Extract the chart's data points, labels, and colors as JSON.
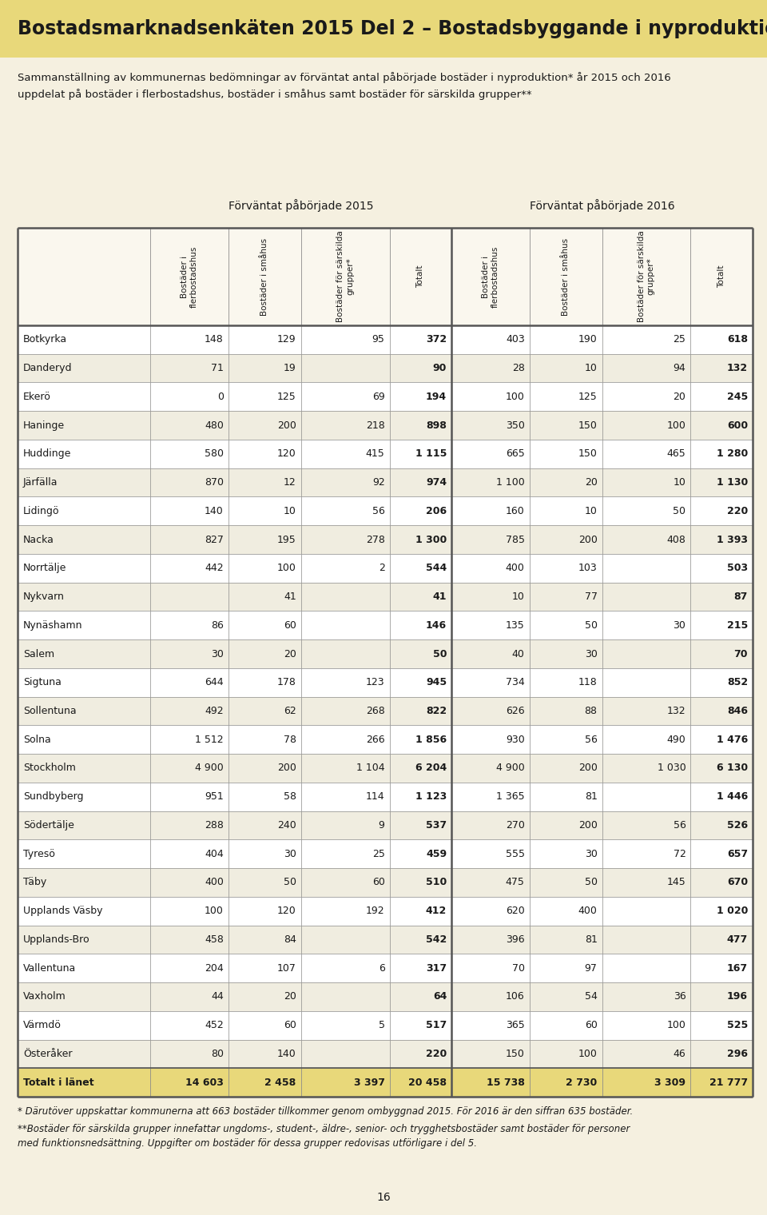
{
  "title_part1": "Bostadsmarknadsenkäten 2015 ",
  "title_bold": "Del 2",
  "title_part2": " – Bostadsbyggande i nyproduktion",
  "subtitle": "Sammanställning av kommunernas bedömningar av förväntat antal påbörjade bostäder i nyproduktion* år 2015 och 2016\nuppdelat på bostäder i flerbostadshus, bostäder i småhus samt bostäder för särskilda grupper**",
  "header_2015": "Förväntat påbörjade 2015",
  "header_2016": "Förväntat påbörjade 2016",
  "col_headers": [
    "Bostäder i\nflerbostadshus",
    "Bostäder i småhus",
    "Bostäder för särskilda\ngrupper*",
    "Totalt",
    "Bostäder i\nflerbostadshus",
    "Bostäder i småhus",
    "Bostäder för särskilda\ngrupper*",
    "Totalt"
  ],
  "rows": [
    [
      "Botkyrka",
      "148",
      "129",
      "95",
      "372",
      "403",
      "190",
      "25",
      "618"
    ],
    [
      "Danderyd",
      "71",
      "19",
      "",
      "90",
      "28",
      "10",
      "94",
      "132"
    ],
    [
      "Ekerö",
      "0",
      "125",
      "69",
      "194",
      "100",
      "125",
      "20",
      "245"
    ],
    [
      "Haninge",
      "480",
      "200",
      "218",
      "898",
      "350",
      "150",
      "100",
      "600"
    ],
    [
      "Huddinge",
      "580",
      "120",
      "415",
      "1 115",
      "665",
      "150",
      "465",
      "1 280"
    ],
    [
      "Järfälla",
      "870",
      "12",
      "92",
      "974",
      "1 100",
      "20",
      "10",
      "1 130"
    ],
    [
      "Lidingö",
      "140",
      "10",
      "56",
      "206",
      "160",
      "10",
      "50",
      "220"
    ],
    [
      "Nacka",
      "827",
      "195",
      "278",
      "1 300",
      "785",
      "200",
      "408",
      "1 393"
    ],
    [
      "Norrtälje",
      "442",
      "100",
      "2",
      "544",
      "400",
      "103",
      "",
      "503"
    ],
    [
      "Nykvarn",
      "",
      "41",
      "",
      "41",
      "10",
      "77",
      "",
      "87"
    ],
    [
      "Nynäshamn",
      "86",
      "60",
      "",
      "146",
      "135",
      "50",
      "30",
      "215"
    ],
    [
      "Salem",
      "30",
      "20",
      "",
      "50",
      "40",
      "30",
      "",
      "70"
    ],
    [
      "Sigtuna",
      "644",
      "178",
      "123",
      "945",
      "734",
      "118",
      "",
      "852"
    ],
    [
      "Sollentuna",
      "492",
      "62",
      "268",
      "822",
      "626",
      "88",
      "132",
      "846"
    ],
    [
      "Solna",
      "1 512",
      "78",
      "266",
      "1 856",
      "930",
      "56",
      "490",
      "1 476"
    ],
    [
      "Stockholm",
      "4 900",
      "200",
      "1 104",
      "6 204",
      "4 900",
      "200",
      "1 030",
      "6 130"
    ],
    [
      "Sundbyberg",
      "951",
      "58",
      "114",
      "1 123",
      "1 365",
      "81",
      "",
      "1 446"
    ],
    [
      "Södertälje",
      "288",
      "240",
      "9",
      "537",
      "270",
      "200",
      "56",
      "526"
    ],
    [
      "Tyresö",
      "404",
      "30",
      "25",
      "459",
      "555",
      "30",
      "72",
      "657"
    ],
    [
      "Täby",
      "400",
      "50",
      "60",
      "510",
      "475",
      "50",
      "145",
      "670"
    ],
    [
      "Upplands Väsby",
      "100",
      "120",
      "192",
      "412",
      "620",
      "400",
      "",
      "1 020"
    ],
    [
      "Upplands-Bro",
      "458",
      "84",
      "",
      "542",
      "396",
      "81",
      "",
      "477"
    ],
    [
      "Vallentuna",
      "204",
      "107",
      "6",
      "317",
      "70",
      "97",
      "",
      "167"
    ],
    [
      "Vaxholm",
      "44",
      "20",
      "",
      "64",
      "106",
      "54",
      "36",
      "196"
    ],
    [
      "Värmdö",
      "452",
      "60",
      "5",
      "517",
      "365",
      "60",
      "100",
      "525"
    ],
    [
      "Österåker",
      "80",
      "140",
      "",
      "220",
      "150",
      "100",
      "46",
      "296"
    ]
  ],
  "total_row": [
    "Totalt i länet",
    "14 603",
    "2 458",
    "3 397",
    "20 458",
    "15 738",
    "2 730",
    "3 309",
    "21 777"
  ],
  "footnote1": "* Därutöver uppskattar kommunerna att 663 bostäder tillkommer genom ombyggnad 2015. För 2016 är den siffran 635 bostäder.",
  "footnote2": "**Bostäder för särskilda grupper innefattar ungdoms-, student-, äldre-, senior- och trygghetsbostäder samt bostäder för personer\nmed funktionsnedsättning. Uppgifter om bostäder för dessa grupper redovisas utförligare i del 5.",
  "page_number": "16",
  "bg_title": "#e8d87a",
  "bg_page": "#f5f0e0",
  "bg_header": "#faf7ee",
  "bg_row_odd": "#ffffff",
  "bg_row_even": "#f0ede0",
  "bg_total_row": "#e8d87a",
  "border_color": "#888888",
  "border_dark": "#555555",
  "text_color": "#1a1a1a"
}
